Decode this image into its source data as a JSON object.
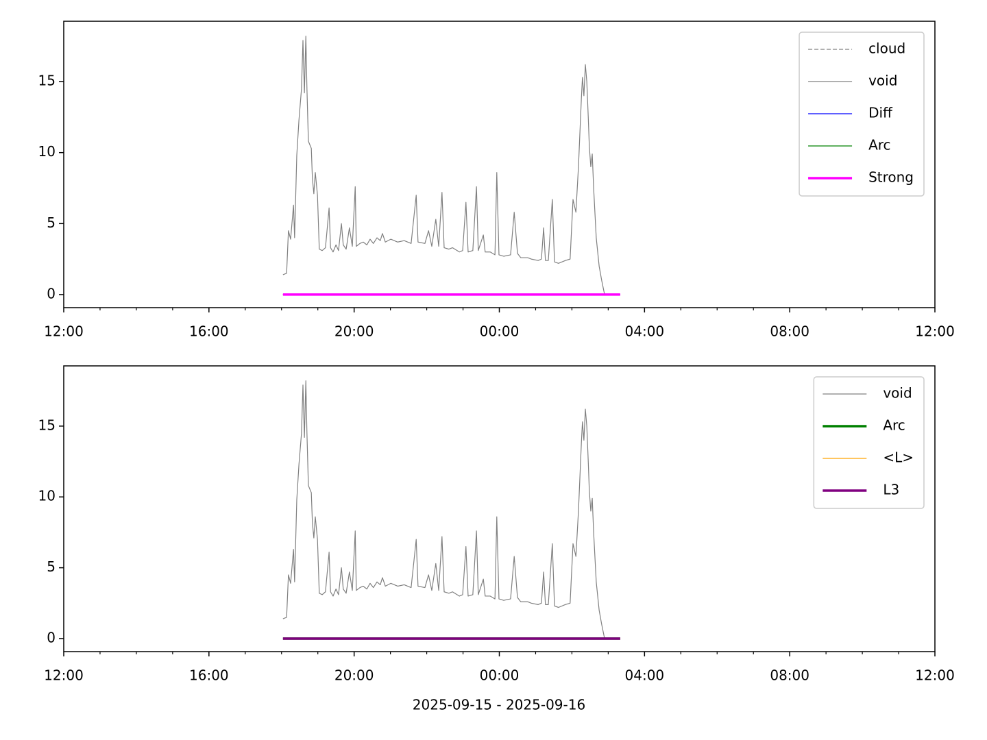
{
  "chart_data": [
    {
      "type": "line",
      "xlim": [
        12,
        36
      ],
      "xticks": [
        {
          "value": 12,
          "label": "12:00"
        },
        {
          "value": 16,
          "label": "16:00"
        },
        {
          "value": 20,
          "label": "20:00"
        },
        {
          "value": 24,
          "label": "00:00"
        },
        {
          "value": 28,
          "label": "04:00"
        },
        {
          "value": 32,
          "label": "08:00"
        },
        {
          "value": 36,
          "label": "12:00"
        }
      ],
      "xminorticks": [
        13,
        14,
        15,
        17,
        18,
        19,
        21,
        22,
        23,
        25,
        26,
        27,
        29,
        30,
        31,
        33,
        34,
        35
      ],
      "ylim": [
        -0.92,
        19.25
      ],
      "yticks": [
        0,
        5,
        10,
        15
      ],
      "legend": "upper right",
      "series": [
        {
          "name": "cloud",
          "color": "#808080",
          "linewidth": 1.2,
          "linestyle": "dashed",
          "x": [
            18.04,
            27.33
          ],
          "values": [
            0,
            0
          ]
        },
        {
          "name": "void",
          "color": "#808080",
          "linewidth": 1.2,
          "linestyle": "solid",
          "x": [
            18.04,
            18.14,
            18.19,
            18.25,
            18.33,
            18.36,
            18.42,
            18.48,
            18.55,
            18.59,
            18.63,
            18.67,
            18.7,
            18.74,
            18.82,
            18.85,
            18.89,
            18.93,
            18.99,
            19.04,
            19.12,
            19.21,
            19.31,
            19.35,
            19.42,
            19.5,
            19.57,
            19.65,
            19.7,
            19.78,
            19.87,
            19.95,
            20.03,
            20.06,
            20.16,
            20.25,
            20.35,
            20.44,
            20.53,
            20.63,
            20.72,
            20.78,
            20.86,
            21.01,
            21.2,
            21.38,
            21.57,
            21.71,
            21.76,
            21.95,
            22.05,
            22.14,
            22.25,
            22.33,
            22.42,
            22.48,
            22.61,
            22.71,
            22.9,
            22.99,
            23.08,
            23.14,
            23.27,
            23.37,
            23.42,
            23.56,
            23.61,
            23.75,
            23.88,
            23.93,
            23.99,
            24.12,
            24.31,
            24.41,
            24.5,
            24.59,
            24.78,
            24.88,
            25.07,
            25.16,
            25.22,
            25.27,
            25.35,
            25.46,
            25.52,
            25.63,
            25.82,
            25.95,
            26.03,
            26.11,
            26.18,
            26.26,
            26.29,
            26.33,
            26.37,
            26.41,
            26.45,
            26.48,
            26.52,
            26.56,
            26.6,
            26.67,
            26.75,
            26.82,
            26.9
          ],
          "values": [
            1.4,
            1.5,
            4.5,
            3.9,
            6.3,
            4.0,
            9.8,
            12.3,
            14.5,
            17.9,
            14.2,
            18.2,
            14.5,
            10.8,
            10.3,
            8.2,
            7.1,
            8.6,
            7.0,
            3.2,
            3.1,
            3.3,
            6.1,
            3.3,
            3.0,
            3.5,
            3.1,
            5.0,
            3.5,
            3.2,
            4.7,
            3.4,
            7.6,
            3.4,
            3.6,
            3.7,
            3.5,
            3.9,
            3.6,
            4.0,
            3.8,
            4.3,
            3.7,
            3.9,
            3.7,
            3.8,
            3.6,
            7.0,
            3.7,
            3.6,
            4.5,
            3.4,
            5.3,
            3.4,
            7.2,
            3.3,
            3.2,
            3.3,
            3.0,
            3.1,
            6.5,
            3.0,
            3.1,
            7.6,
            3.1,
            4.2,
            3.0,
            3.0,
            2.8,
            8.6,
            2.8,
            2.7,
            2.8,
            5.8,
            2.9,
            2.6,
            2.6,
            2.5,
            2.4,
            2.5,
            4.7,
            2.4,
            2.4,
            6.7,
            2.3,
            2.2,
            2.4,
            2.5,
            6.7,
            5.8,
            9.0,
            13.8,
            15.3,
            14.0,
            16.2,
            15.0,
            12.5,
            10.4,
            9.0,
            9.9,
            7.4,
            4.0,
            2.0,
            1.0,
            0.0
          ]
        },
        {
          "name": "Diff",
          "color": "#0000ff",
          "linewidth": 1.2,
          "linestyle": "solid",
          "x": [
            18.04,
            27.33
          ],
          "values": [
            0,
            0
          ]
        },
        {
          "name": "Arc",
          "color": "#008000",
          "linewidth": 1.2,
          "linestyle": "solid",
          "x": [
            18.04,
            27.33
          ],
          "values": [
            0,
            0
          ]
        },
        {
          "name": "Strong",
          "color": "#ff00ff",
          "linewidth": 3.5,
          "linestyle": "solid",
          "x": [
            18.04,
            27.33
          ],
          "values": [
            0,
            0
          ]
        }
      ]
    },
    {
      "type": "line",
      "xlabel": "2025-09-15 - 2025-09-16",
      "xlim": [
        12,
        36
      ],
      "xticks": [
        {
          "value": 12,
          "label": "12:00"
        },
        {
          "value": 16,
          "label": "16:00"
        },
        {
          "value": 20,
          "label": "20:00"
        },
        {
          "value": 24,
          "label": "00:00"
        },
        {
          "value": 28,
          "label": "04:00"
        },
        {
          "value": 32,
          "label": "08:00"
        },
        {
          "value": 36,
          "label": "12:00"
        }
      ],
      "xminorticks": [
        13,
        14,
        15,
        17,
        18,
        19,
        21,
        22,
        23,
        25,
        26,
        27,
        29,
        30,
        31,
        33,
        34,
        35
      ],
      "ylim": [
        -0.92,
        19.25
      ],
      "yticks": [
        0,
        5,
        10,
        15
      ],
      "legend": "upper right",
      "series": [
        {
          "name": "void",
          "color": "#808080",
          "linewidth": 1.2,
          "linestyle": "solid",
          "x": [
            18.04,
            18.14,
            18.19,
            18.25,
            18.33,
            18.36,
            18.42,
            18.48,
            18.55,
            18.59,
            18.63,
            18.67,
            18.7,
            18.74,
            18.82,
            18.85,
            18.89,
            18.93,
            18.99,
            19.04,
            19.12,
            19.21,
            19.31,
            19.35,
            19.42,
            19.5,
            19.57,
            19.65,
            19.7,
            19.78,
            19.87,
            19.95,
            20.03,
            20.06,
            20.16,
            20.25,
            20.35,
            20.44,
            20.53,
            20.63,
            20.72,
            20.78,
            20.86,
            21.01,
            21.2,
            21.38,
            21.57,
            21.71,
            21.76,
            21.95,
            22.05,
            22.14,
            22.25,
            22.33,
            22.42,
            22.48,
            22.61,
            22.71,
            22.9,
            22.99,
            23.08,
            23.14,
            23.27,
            23.37,
            23.42,
            23.56,
            23.61,
            23.75,
            23.88,
            23.93,
            23.99,
            24.12,
            24.31,
            24.41,
            24.5,
            24.59,
            24.78,
            24.88,
            25.07,
            25.16,
            25.22,
            25.27,
            25.35,
            25.46,
            25.52,
            25.63,
            25.82,
            25.95,
            26.03,
            26.11,
            26.18,
            26.26,
            26.29,
            26.33,
            26.37,
            26.41,
            26.45,
            26.48,
            26.52,
            26.56,
            26.6,
            26.67,
            26.75,
            26.82,
            26.9
          ],
          "values": [
            1.4,
            1.5,
            4.5,
            3.9,
            6.3,
            4.0,
            9.8,
            12.3,
            14.5,
            17.9,
            14.2,
            18.2,
            14.5,
            10.8,
            10.3,
            8.2,
            7.1,
            8.6,
            7.0,
            3.2,
            3.1,
            3.3,
            6.1,
            3.3,
            3.0,
            3.5,
            3.1,
            5.0,
            3.5,
            3.2,
            4.7,
            3.4,
            7.6,
            3.4,
            3.6,
            3.7,
            3.5,
            3.9,
            3.6,
            4.0,
            3.8,
            4.3,
            3.7,
            3.9,
            3.7,
            3.8,
            3.6,
            7.0,
            3.7,
            3.6,
            4.5,
            3.4,
            5.3,
            3.4,
            7.2,
            3.3,
            3.2,
            3.3,
            3.0,
            3.1,
            6.5,
            3.0,
            3.1,
            7.6,
            3.1,
            4.2,
            3.0,
            3.0,
            2.8,
            8.6,
            2.8,
            2.7,
            2.8,
            5.8,
            2.9,
            2.6,
            2.6,
            2.5,
            2.4,
            2.5,
            4.7,
            2.4,
            2.4,
            6.7,
            2.3,
            2.2,
            2.4,
            2.5,
            6.7,
            5.8,
            9.0,
            13.8,
            15.3,
            14.0,
            16.2,
            15.0,
            12.5,
            10.4,
            9.0,
            9.9,
            7.4,
            4.0,
            2.0,
            1.0,
            0.0
          ]
        },
        {
          "name": "Arc",
          "color": "#008000",
          "linewidth": 3.5,
          "linestyle": "solid",
          "x": [
            18.04,
            27.33
          ],
          "values": [
            0,
            0
          ]
        },
        {
          "name": "<L>",
          "color": "#ffa500",
          "linewidth": 1.2,
          "linestyle": "solid",
          "x": [
            18.04,
            27.33
          ],
          "values": [
            0,
            0
          ]
        },
        {
          "name": "L3",
          "color": "#800080",
          "linewidth": 3.5,
          "linestyle": "solid",
          "x": [
            18.04,
            27.33
          ],
          "values": [
            0,
            0
          ]
        }
      ]
    }
  ]
}
